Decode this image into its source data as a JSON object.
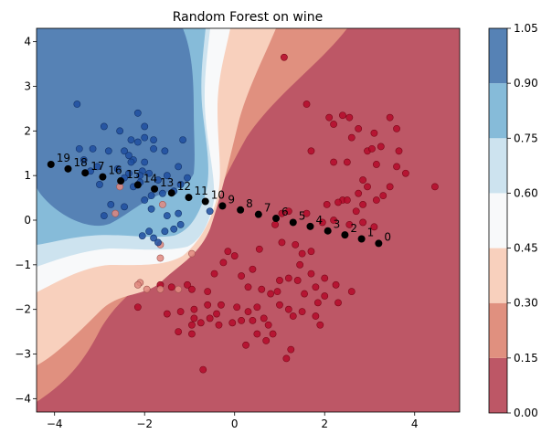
{
  "chart_data": {
    "type": "scatter",
    "title": "Random Forest on wine",
    "xlabel": "",
    "ylabel": "",
    "xlim": [
      -4.4,
      5.0
    ],
    "ylim": [
      -4.3,
      4.3
    ],
    "x_ticks": [
      "−4",
      "−2",
      "0",
      "2",
      "4"
    ],
    "x_tick_values": [
      -4,
      -2,
      0,
      2,
      4
    ],
    "y_ticks": [
      "−4",
      "−3",
      "−2",
      "−1",
      "0",
      "1",
      "2",
      "3",
      "4"
    ],
    "y_tick_values": [
      -4,
      -3,
      -2,
      -1,
      0,
      1,
      2,
      3,
      4
    ],
    "colorbar": {
      "levels": [
        0.0,
        0.15,
        0.3,
        0.45,
        0.6,
        0.75,
        0.9,
        1.05
      ],
      "tick_labels": [
        "0.00",
        "0.15",
        "0.30",
        "0.45",
        "0.60",
        "0.75",
        "0.90",
        "1.05"
      ],
      "colors": [
        "#bd5766",
        "#e0907f",
        "#f8d0bd",
        "#f8f9fa",
        "#cde3ef",
        "#86bbd9",
        "#5682b5"
      ]
    },
    "class_colors": {
      "class_0": "#b5092a",
      "class_1": "#1e4fa0",
      "class_mid": "#e08a80",
      "path": "#000000"
    },
    "path_points": [
      {
        "label": "0",
        "x": 3.2,
        "y": -0.52
      },
      {
        "label": "1",
        "x": 2.82,
        "y": -0.42
      },
      {
        "label": "2",
        "x": 2.45,
        "y": -0.33
      },
      {
        "label": "3",
        "x": 2.07,
        "y": -0.24
      },
      {
        "label": "4",
        "x": 1.68,
        "y": -0.14
      },
      {
        "label": "5",
        "x": 1.3,
        "y": -0.05
      },
      {
        "label": "6",
        "x": 0.92,
        "y": 0.04
      },
      {
        "label": "7",
        "x": 0.53,
        "y": 0.13
      },
      {
        "label": "8",
        "x": 0.13,
        "y": 0.23
      },
      {
        "label": "9",
        "x": -0.27,
        "y": 0.32
      },
      {
        "label": "10",
        "x": -0.65,
        "y": 0.42
      },
      {
        "label": "11",
        "x": -1.02,
        "y": 0.51
      },
      {
        "label": "12",
        "x": -1.4,
        "y": 0.61
      },
      {
        "label": "13",
        "x": -1.78,
        "y": 0.7
      },
      {
        "label": "14",
        "x": -2.15,
        "y": 0.79
      },
      {
        "label": "15",
        "x": -2.53,
        "y": 0.88
      },
      {
        "label": "16",
        "x": -2.93,
        "y": 0.97
      },
      {
        "label": "17",
        "x": -3.32,
        "y": 1.06
      },
      {
        "label": "18",
        "x": -3.7,
        "y": 1.15
      },
      {
        "label": "19",
        "x": -4.08,
        "y": 1.25
      }
    ],
    "class_0_points": [
      [
        1.1,
        3.65
      ],
      [
        1.6,
        2.6
      ],
      [
        2.1,
        2.3
      ],
      [
        2.2,
        2.15
      ],
      [
        2.4,
        2.35
      ],
      [
        2.55,
        2.3
      ],
      [
        2.75,
        2.05
      ],
      [
        2.6,
        1.85
      ],
      [
        3.1,
        1.95
      ],
      [
        3.25,
        1.65
      ],
      [
        3.45,
        2.3
      ],
      [
        3.6,
        2.05
      ],
      [
        3.65,
        1.55
      ],
      [
        3.6,
        1.2
      ],
      [
        3.8,
        1.05
      ],
      [
        4.45,
        0.75
      ],
      [
        1.7,
        1.55
      ],
      [
        2.2,
        1.3
      ],
      [
        2.5,
        1.3
      ],
      [
        2.95,
        1.55
      ],
      [
        3.05,
        1.6
      ],
      [
        3.15,
        1.25
      ],
      [
        2.85,
        0.9
      ],
      [
        2.75,
        0.6
      ],
      [
        2.95,
        0.75
      ],
      [
        3.15,
        0.45
      ],
      [
        3.3,
        0.55
      ],
      [
        3.45,
        0.75
      ],
      [
        2.4,
        0.45
      ],
      [
        2.5,
        0.45
      ],
      [
        2.3,
        0.4
      ],
      [
        2.05,
        0.35
      ],
      [
        2.85,
        0.35
      ],
      [
        2.7,
        0.2
      ],
      [
        2.85,
        -0.05
      ],
      [
        3.1,
        -0.15
      ],
      [
        2.55,
        -0.1
      ],
      [
        2.2,
        0.0
      ],
      [
        1.95,
        -0.05
      ],
      [
        1.6,
        0.15
      ],
      [
        1.2,
        0.2
      ],
      [
        1.05,
        0.15
      ],
      [
        0.9,
        -0.1
      ],
      [
        0.55,
        -0.65
      ],
      [
        1.05,
        -0.5
      ],
      [
        1.35,
        -0.55
      ],
      [
        1.5,
        -0.75
      ],
      [
        1.7,
        -0.7
      ],
      [
        1.45,
        -1.0
      ],
      [
        1.7,
        -1.2
      ],
      [
        2.0,
        -1.3
      ],
      [
        1.8,
        -1.5
      ],
      [
        2.25,
        -1.45
      ],
      [
        2.6,
        -1.6
      ],
      [
        2.3,
        -1.85
      ],
      [
        2.0,
        -1.7
      ],
      [
        1.85,
        -1.85
      ],
      [
        1.55,
        -1.65
      ],
      [
        1.4,
        -1.35
      ],
      [
        1.2,
        -1.3
      ],
      [
        1.0,
        -1.35
      ],
      [
        0.95,
        -1.6
      ],
      [
        0.6,
        -1.55
      ],
      [
        0.4,
        -1.1
      ],
      [
        0.15,
        -1.25
      ],
      [
        0.3,
        -1.5
      ],
      [
        0.5,
        -1.95
      ],
      [
        0.3,
        -2.05
      ],
      [
        0.15,
        -2.25
      ],
      [
        0.05,
        -1.95
      ],
      [
        -0.3,
        -1.9
      ],
      [
        -0.05,
        -2.3
      ],
      [
        0.4,
        -2.25
      ],
      [
        0.65,
        -2.2
      ],
      [
        0.75,
        -2.35
      ],
      [
        0.85,
        -2.55
      ],
      [
        0.7,
        -2.7
      ],
      [
        0.5,
        -2.55
      ],
      [
        0.25,
        -2.8
      ],
      [
        -0.35,
        -2.35
      ],
      [
        -0.4,
        -2.1
      ],
      [
        -0.55,
        -2.2
      ],
      [
        -0.9,
        -2.0
      ],
      [
        -0.75,
        -2.3
      ],
      [
        -0.95,
        -2.55
      ],
      [
        -1.25,
        -2.5
      ],
      [
        -0.9,
        -2.2
      ],
      [
        -0.95,
        -1.55
      ],
      [
        -1.5,
        -2.1
      ],
      [
        -1.2,
        -2.05
      ],
      [
        -0.6,
        -1.6
      ],
      [
        -0.45,
        -1.2
      ],
      [
        -0.25,
        -0.95
      ],
      [
        -0.15,
        -0.7
      ],
      [
        0.0,
        -0.8
      ],
      [
        0.8,
        -1.65
      ],
      [
        1.0,
        -1.9
      ],
      [
        1.2,
        -2.0
      ],
      [
        1.3,
        -2.15
      ],
      [
        1.5,
        -2.05
      ],
      [
        1.8,
        -2.15
      ],
      [
        1.9,
        -2.35
      ],
      [
        1.25,
        -2.9
      ],
      [
        1.15,
        -3.1
      ],
      [
        -0.6,
        -1.9
      ],
      [
        -0.95,
        -2.35
      ],
      [
        -2.15,
        -1.95
      ],
      [
        -0.7,
        -3.35
      ],
      [
        -1.4,
        -1.5
      ],
      [
        -1.05,
        -1.45
      ],
      [
        -1.65,
        -1.45
      ]
    ],
    "class_mid_points": [
      [
        -2.1,
        -1.4
      ],
      [
        -2.15,
        -1.45
      ],
      [
        -1.95,
        -1.55
      ],
      [
        -1.65,
        -1.55
      ],
      [
        -1.25,
        -1.55
      ],
      [
        -0.95,
        -0.75
      ],
      [
        -1.65,
        -0.85
      ],
      [
        -2.65,
        0.15
      ],
      [
        -2.55,
        0.75
      ],
      [
        -1.6,
        0.35
      ],
      [
        -1.65,
        -0.55
      ]
    ],
    "class_1_points": [
      [
        -3.5,
        2.6
      ],
      [
        -2.9,
        2.1
      ],
      [
        -2.55,
        2.0
      ],
      [
        -2.15,
        2.4
      ],
      [
        -2.0,
        2.1
      ],
      [
        -2.0,
        1.85
      ],
      [
        -1.8,
        1.8
      ],
      [
        -1.8,
        1.6
      ],
      [
        -1.55,
        1.55
      ],
      [
        -1.15,
        1.8
      ],
      [
        -3.45,
        1.6
      ],
      [
        -3.35,
        1.35
      ],
      [
        -3.15,
        1.6
      ],
      [
        -2.8,
        1.55
      ],
      [
        -2.45,
        1.55
      ],
      [
        -2.3,
        1.8
      ],
      [
        -2.15,
        1.75
      ],
      [
        -2.35,
        1.45
      ],
      [
        -2.25,
        1.35
      ],
      [
        -2.0,
        1.3
      ],
      [
        -2.05,
        1.1
      ],
      [
        -1.9,
        1.05
      ],
      [
        -2.6,
        1.15
      ],
      [
        -2.45,
        0.95
      ],
      [
        -2.3,
        1.3
      ],
      [
        -2.35,
        1.05
      ],
      [
        -2.1,
        1.0
      ],
      [
        -2.25,
        0.75
      ],
      [
        -2.1,
        0.85
      ],
      [
        -1.7,
        0.9
      ],
      [
        -1.5,
        1.0
      ],
      [
        -1.25,
        1.2
      ],
      [
        -1.05,
        0.95
      ],
      [
        -1.2,
        0.8
      ],
      [
        -1.35,
        0.65
      ],
      [
        -1.6,
        0.6
      ],
      [
        -1.85,
        0.55
      ],
      [
        -1.85,
        0.25
      ],
      [
        -1.5,
        0.1
      ],
      [
        -1.25,
        0.15
      ],
      [
        -1.2,
        -0.1
      ],
      [
        -1.35,
        -0.2
      ],
      [
        -1.55,
        -0.25
      ],
      [
        -1.9,
        -0.25
      ],
      [
        -2.05,
        -0.35
      ],
      [
        -1.8,
        -0.4
      ],
      [
        -2.45,
        0.3
      ],
      [
        -2.9,
        0.1
      ],
      [
        -2.75,
        0.35
      ],
      [
        -3.0,
        0.8
      ],
      [
        -3.2,
        1.1
      ],
      [
        -3.05,
        1.2
      ],
      [
        -2.0,
        0.45
      ],
      [
        -1.7,
        -0.5
      ],
      [
        -0.55,
        0.2
      ]
    ]
  }
}
